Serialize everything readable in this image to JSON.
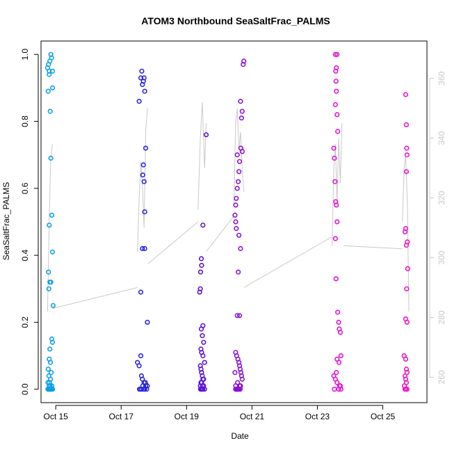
{
  "chart_data": {
    "type": "scatter",
    "title": "ATOM3 Northbound SeaSaltFrac_PALMS",
    "xlabel": "Date",
    "ylabel": "SeaSaltFrac_PALMS",
    "x_unit": "day of October",
    "xlim": [
      14.55,
      26.35
    ],
    "ylim": [
      -0.04,
      1.04
    ],
    "y2lim": [
      251.5,
      372.5
    ],
    "x_ticks": [
      {
        "value": 15,
        "label": "Oct 15"
      },
      {
        "value": 17,
        "label": "Oct 17"
      },
      {
        "value": 19,
        "label": "Oct 19"
      },
      {
        "value": 21,
        "label": "Oct 21"
      },
      {
        "value": 23,
        "label": "Oct 23"
      },
      {
        "value": 25,
        "label": "Oct 25"
      }
    ],
    "y_ticks": [
      "0.0",
      "0.2",
      "0.4",
      "0.6",
      "0.8",
      "1.0"
    ],
    "y2_ticks": [
      "260",
      "280",
      "300",
      "320",
      "340",
      "360"
    ],
    "grid": false,
    "legend": "none",
    "colors": {
      "line": "#c8c8c8",
      "flight1": "#0ba0e8",
      "flight2": "#2a24e0",
      "flight3": "#5a10d8",
      "flight4": "#8a10d8",
      "flight5": "#e410d8",
      "flight6": "#f010c8"
    },
    "series": [
      {
        "color": "#0ba0e8",
        "x": [
          14.75,
          14.78,
          14.8,
          14.82,
          14.85,
          14.87,
          14.9,
          14.8,
          14.77,
          14.83,
          14.85,
          14.88,
          14.9,
          14.92,
          14.8,
          14.78,
          14.82,
          14.85,
          14.79,
          14.88,
          14.9,
          14.82,
          14.8,
          14.84,
          14.77,
          14.86,
          14.79,
          14.81,
          14.83,
          14.87,
          14.9,
          14.78,
          14.8,
          14.82,
          14.85,
          14.76,
          14.88,
          14.84,
          14.8,
          14.82,
          14.78,
          14.86,
          14.84,
          14.8,
          14.9,
          14.76,
          14.82
        ],
        "y": [
          0.96,
          0.97,
          0.95,
          0.98,
          1.0,
          0.99,
          0.95,
          0.94,
          0.89,
          0.83,
          0.69,
          0.52,
          0.41,
          0.25,
          0.49,
          0.35,
          0.32,
          0.32,
          0.3,
          0.15,
          0.14,
          0.12,
          0.09,
          0.08,
          0.06,
          0.05,
          0.04,
          0.02,
          0.01,
          0.0,
          0.0,
          0.0,
          0.01,
          0.0,
          0.0,
          0.02,
          0.01,
          0.0,
          0.0,
          0.0,
          0.0,
          0.0,
          0.03,
          0.0,
          0.9,
          0.0,
          0.0
        ]
      },
      {
        "color": "#2a24e0",
        "x": [
          17.55,
          17.6,
          17.63,
          17.65,
          17.68,
          17.7,
          17.72,
          17.75,
          17.68,
          17.66,
          17.7,
          17.72,
          17.65,
          17.72,
          17.8,
          17.6,
          17.5,
          17.55,
          17.6,
          17.62,
          17.65,
          17.7,
          17.75,
          17.78,
          17.8,
          17.58,
          17.68,
          17.72,
          17.62,
          17.66,
          17.74,
          17.56,
          17.7
        ],
        "y": [
          0.86,
          0.93,
          0.95,
          0.91,
          0.92,
          0.93,
          0.89,
          0.72,
          0.67,
          0.64,
          0.62,
          0.53,
          0.42,
          0.42,
          0.2,
          0.29,
          0.08,
          0.07,
          0.1,
          0.04,
          0.03,
          0.02,
          0.01,
          0.0,
          0.01,
          0.0,
          0.0,
          0.0,
          0.0,
          0.01,
          0.02,
          0.0,
          0.0
        ]
      },
      {
        "color": "#5a10d8",
        "x": [
          19.6,
          19.5,
          19.45,
          19.46,
          19.43,
          19.42,
          19.4,
          19.45,
          19.5,
          19.48,
          19.52,
          19.44,
          19.46,
          19.5,
          19.55,
          19.42,
          19.44,
          19.46,
          19.48,
          19.5,
          19.52,
          19.44,
          19.46,
          19.48,
          19.42,
          19.5,
          19.45,
          19.52,
          19.55,
          19.47,
          19.43
        ],
        "y": [
          0.76,
          0.49,
          0.39,
          0.37,
          0.35,
          0.3,
          0.29,
          0.18,
          0.19,
          0.16,
          0.14,
          0.12,
          0.11,
          0.1,
          0.08,
          0.07,
          0.06,
          0.05,
          0.04,
          0.03,
          0.03,
          0.02,
          0.02,
          0.01,
          0.01,
          0.0,
          0.0,
          0.01,
          0.0,
          0.0,
          0.0
        ]
      },
      {
        "color": "#8a10d8",
        "x": [
          20.75,
          20.73,
          20.65,
          20.7,
          20.68,
          20.66,
          20.7,
          20.55,
          20.62,
          20.6,
          20.58,
          20.55,
          20.52,
          20.5,
          20.48,
          20.5,
          20.52,
          20.6,
          20.65,
          20.58,
          20.62,
          20.55,
          20.5,
          20.53,
          20.57,
          20.6,
          20.62,
          20.64,
          20.66,
          20.68,
          20.7,
          20.56,
          20.5,
          20.55,
          20.58,
          20.6,
          20.62,
          20.64,
          20.52,
          20.5,
          20.48,
          20.54,
          20.6,
          20.65,
          20.57,
          20.53
        ],
        "y": [
          0.98,
          0.97,
          0.86,
          0.83,
          0.81,
          0.72,
          0.71,
          0.7,
          0.68,
          0.65,
          0.62,
          0.6,
          0.57,
          0.55,
          0.52,
          0.5,
          0.48,
          0.46,
          0.42,
          0.35,
          0.22,
          0.22,
          0.11,
          0.1,
          0.09,
          0.08,
          0.07,
          0.06,
          0.05,
          0.04,
          0.03,
          0.02,
          0.01,
          0.0,
          0.0,
          0.0,
          0.01,
          0.0,
          0.0,
          0.0,
          0.05,
          0.0,
          0.0,
          0.01,
          0.0,
          0.0
        ]
      },
      {
        "color": "#e410d8",
        "x": [
          23.55,
          23.6,
          23.58,
          23.56,
          23.57,
          23.58,
          23.55,
          23.6,
          23.62,
          23.5,
          23.52,
          23.54,
          23.56,
          23.58,
          23.6,
          23.55,
          23.57,
          23.62,
          23.65,
          23.67,
          23.7,
          23.72,
          23.6,
          23.66,
          23.58,
          23.5,
          23.55,
          23.6,
          23.68,
          23.72,
          23.65,
          23.7,
          23.52
        ],
        "y": [
          1.0,
          1.0,
          0.96,
          0.95,
          0.92,
          0.89,
          0.85,
          0.82,
          0.77,
          0.72,
          0.69,
          0.62,
          0.56,
          0.55,
          0.5,
          0.45,
          0.33,
          0.23,
          0.2,
          0.18,
          0.17,
          0.1,
          0.09,
          0.08,
          0.05,
          0.04,
          0.03,
          0.02,
          0.01,
          0.0,
          0.0,
          0.01,
          0.0
        ]
      },
      {
        "color": "#f010c8",
        "x": [
          25.7,
          25.72,
          25.73,
          25.74,
          25.72,
          25.7,
          25.68,
          25.72,
          25.75,
          25.76,
          25.73,
          25.7,
          25.74,
          25.65,
          25.7,
          25.72,
          25.74,
          25.68,
          25.7,
          25.72,
          25.66,
          25.74,
          25.68,
          25.7
        ],
        "y": [
          0.88,
          0.79,
          0.72,
          0.7,
          0.65,
          0.48,
          0.47,
          0.43,
          0.44,
          0.36,
          0.3,
          0.21,
          0.2,
          0.1,
          0.09,
          0.06,
          0.05,
          0.04,
          0.03,
          0.02,
          0.01,
          0.0,
          0.0,
          0.0
        ]
      }
    ],
    "line_series": {
      "axis": "right",
      "segments": [
        {
          "x": [
            14.75,
            14.8,
            14.85,
            14.9
          ],
          "y": [
            282,
            313,
            334,
            338
          ]
        },
        {
          "x": [
            14.9,
            17.5
          ],
          "y": [
            283,
            290
          ]
        },
        {
          "x": [
            17.5,
            17.55,
            17.6,
            17.65,
            17.7,
            17.75,
            17.8
          ],
          "y": [
            302,
            320,
            332,
            324,
            310,
            342,
            350
          ]
        },
        {
          "x": [
            17.82,
            19.35
          ],
          "y": [
            298,
            312
          ]
        },
        {
          "x": [
            19.35,
            19.42,
            19.48,
            19.55,
            19.6
          ],
          "y": [
            316,
            340,
            352,
            330,
            345
          ]
        },
        {
          "x": [
            19.6,
            20.45
          ],
          "y": [
            302,
            314
          ]
        },
        {
          "x": [
            20.45,
            20.5,
            20.55,
            20.6,
            20.65,
            20.7,
            20.75
          ],
          "y": [
            318,
            345,
            350,
            336,
            342,
            330,
            322
          ]
        },
        {
          "x": [
            20.75,
            23.45
          ],
          "y": [
            290,
            307
          ]
        },
        {
          "x": [
            23.45,
            23.5,
            23.55,
            23.6,
            23.65,
            23.7,
            23.75
          ],
          "y": [
            304,
            330,
            338,
            318,
            340,
            325,
            345
          ]
        },
        {
          "x": [
            23.8,
            25.6
          ],
          "y": [
            304,
            303
          ]
        },
        {
          "x": [
            25.6,
            25.65,
            25.7,
            25.75,
            25.8
          ],
          "y": [
            312,
            330,
            334,
            318,
            282
          ]
        }
      ]
    }
  }
}
